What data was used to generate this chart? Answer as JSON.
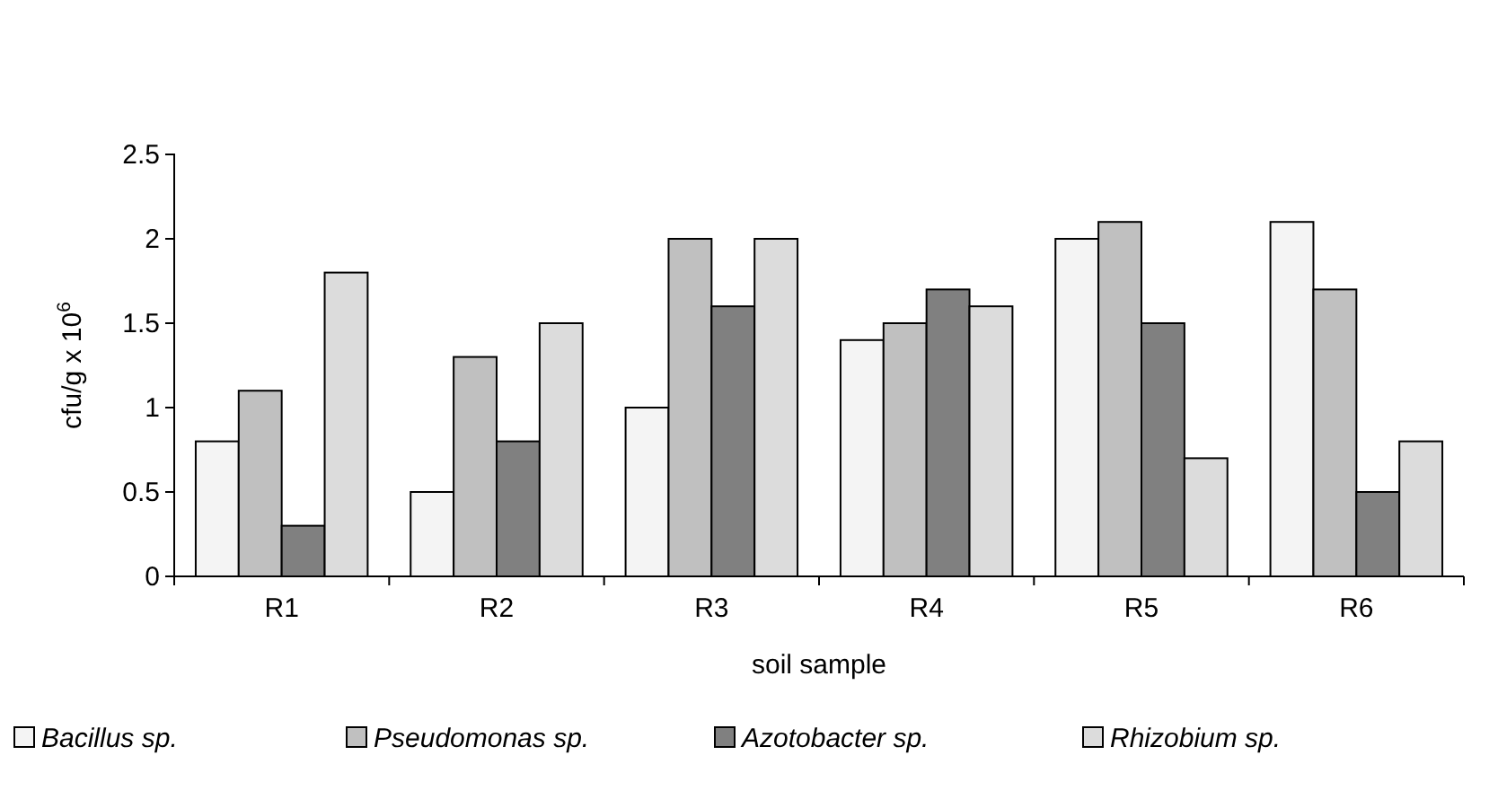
{
  "chart_data": {
    "type": "bar",
    "xlabel": "soil sample",
    "ylabel": "cfu/g x 10$^{6}$",
    "categories": [
      "R1",
      "R2",
      "R3",
      "R4",
      "R5",
      "R6"
    ],
    "series": [
      {
        "name": "Bacillus sp.",
        "color": "#f4f4f4",
        "values": [
          0.8,
          0.5,
          1.0,
          1.4,
          2.0,
          2.1
        ]
      },
      {
        "name": "Pseudomonas sp.",
        "color": "#c0c0c0",
        "values": [
          1.1,
          1.3,
          2.0,
          1.5,
          2.1,
          1.7
        ]
      },
      {
        "name": "Azotobacter sp.",
        "color": "#808080",
        "values": [
          0.3,
          0.8,
          1.6,
          1.7,
          1.5,
          0.5
        ]
      },
      {
        "name": "Rhizobium sp.",
        "color": "#dcdcdc",
        "values": [
          1.8,
          1.5,
          2.0,
          1.6,
          0.7,
          0.8
        ]
      }
    ],
    "ylim": [
      0,
      2.5
    ],
    "yticks": [
      0,
      0.5,
      1,
      1.5,
      2,
      2.5
    ],
    "grid": false,
    "legend": "bottom"
  }
}
